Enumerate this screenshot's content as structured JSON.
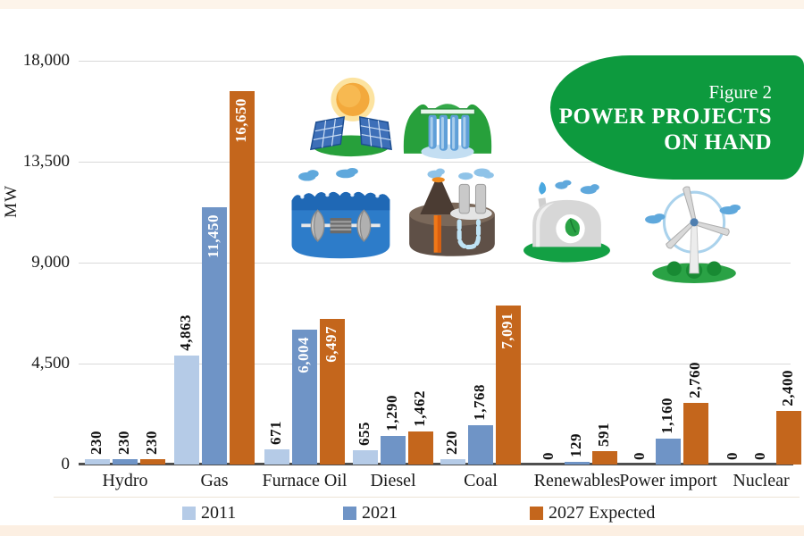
{
  "badge": {
    "label": "Figure 2",
    "title_line1": "POWER PROJECTS",
    "title_line2": "ON HAND",
    "color": "#0d9a3e"
  },
  "chart_data": {
    "type": "bar",
    "title": "POWER PROJECTS ON HAND",
    "ylabel": "MW",
    "xlabel": "",
    "ylim": [
      0,
      18000
    ],
    "ytick_values": [
      0,
      4500,
      9000,
      13500,
      18000
    ],
    "ytick_labels": [
      "0",
      "4,500",
      "9,000",
      "13,500",
      "18,000"
    ],
    "grid": true,
    "legend_position": "bottom",
    "categories": [
      "Hydro",
      "Gas",
      "Furnace Oil",
      "Diesel",
      "Coal",
      "Renewables",
      "Power import",
      "Nuclear"
    ],
    "series": [
      {
        "name": "2011",
        "color": "#b5cbe7",
        "values": [
          230,
          4863,
          671,
          655,
          220,
          0,
          0,
          0
        ]
      },
      {
        "name": "2021",
        "color": "#6f94c6",
        "values": [
          230,
          11450,
          6004,
          1290,
          1768,
          129,
          1160,
          0
        ]
      },
      {
        "name": "2027 Expected",
        "color": "#c4661c",
        "values": [
          230,
          16650,
          6497,
          1462,
          7091,
          591,
          2760,
          2400
        ]
      }
    ]
  },
  "legend": {
    "items": [
      {
        "label": "2011",
        "color": "#b5cbe7"
      },
      {
        "label": "2021",
        "color": "#6f94c6"
      },
      {
        "label": "2027 Expected",
        "color": "#c4661c"
      }
    ]
  },
  "icons": [
    "solar-energy",
    "hydro-dam",
    "wave-energy",
    "geothermal-energy",
    "biogas-plant",
    "wind-turbine"
  ],
  "colors": {
    "axis": "#4f4f4f",
    "gridline": "#d9d9d9",
    "top_strip": "#fdf4ea",
    "bottom_strip": "#fcefe2",
    "badge_green": "#0d9a3e"
  }
}
